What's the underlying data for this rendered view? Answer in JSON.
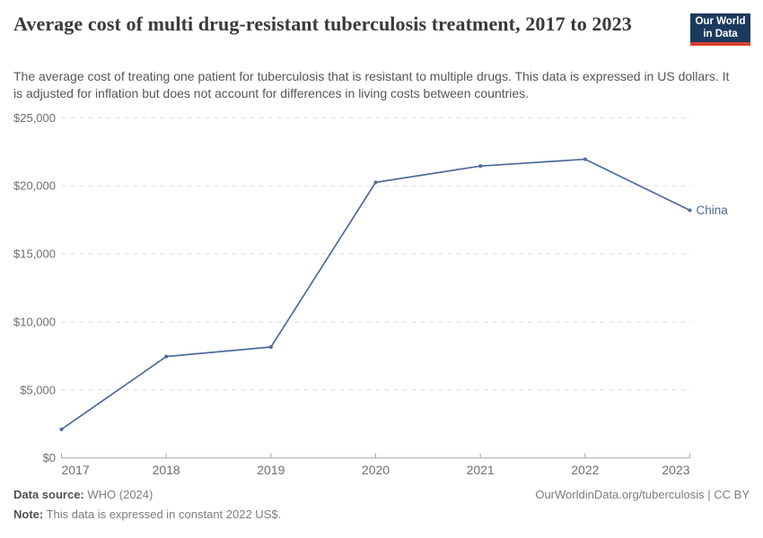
{
  "header": {
    "title": "Average cost of multi drug-resistant tuberculosis treatment, 2017 to 2023",
    "subtitle": "The average cost of treating one patient for tuberculosis that is resistant to multiple drugs. This data is expressed in US dollars. It is adjusted for inflation but does not account for differences in living costs between countries.",
    "logo_line1": "Our World",
    "logo_line2": "in Data",
    "logo_bg_color": "#1b3a5e",
    "logo_accent_color": "#d9412f"
  },
  "footer": {
    "source_label": "Data source:",
    "source_value": "WHO (2024)",
    "link": "OurWorldinData.org/tuberculosis | CC BY",
    "note_label": "Note:",
    "note_value": "This data is expressed in constant 2022 US$."
  },
  "chart_data": {
    "type": "line",
    "title": "Average cost of multi drug-resistant tuberculosis treatment, 2017 to 2023",
    "xlabel": "",
    "ylabel": "",
    "x": [
      2017,
      2018,
      2019,
      2020,
      2021,
      2022,
      2023
    ],
    "series": [
      {
        "name": "China",
        "color": "#4C6A9C",
        "values": [
          2100,
          7450,
          8150,
          20250,
          21450,
          21950,
          18200
        ]
      }
    ],
    "ylim": [
      0,
      25000
    ],
    "yticks": [
      {
        "value": 0,
        "label": "$0"
      },
      {
        "value": 5000,
        "label": "$5,000"
      },
      {
        "value": 10000,
        "label": "$10,000"
      },
      {
        "value": 15000,
        "label": "$15,000"
      },
      {
        "value": 20000,
        "label": "$20,000"
      },
      {
        "value": 25000,
        "label": "$25,000"
      }
    ],
    "grid": "horizontal-dashed",
    "legend": "end-of-line-label",
    "colors": {
      "grid": "#dddddd",
      "axis": "#a3a3a3",
      "tick_label": "#6e6e6e"
    }
  }
}
